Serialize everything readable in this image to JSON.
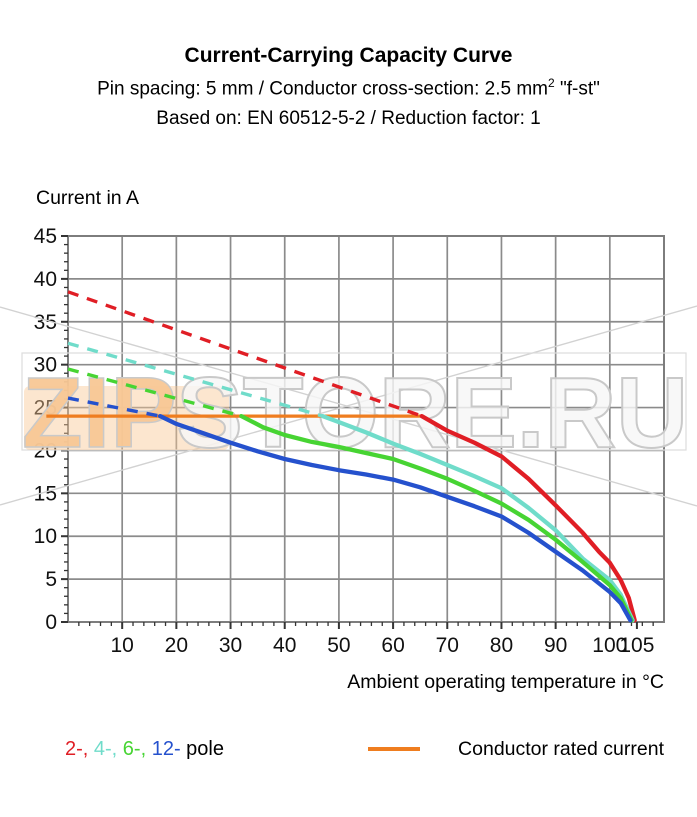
{
  "header": {
    "title": "Current-Carrying Capacity Curve",
    "subtitle1_pre": "Pin spacing: 5 mm / Conductor cross-section: 2.5 mm",
    "subtitle1_sup": "2",
    "subtitle1_post": " \"f-st\"",
    "subtitle2": "Based on: EN 60512-5-2 / Reduction factor: 1"
  },
  "watermark": {
    "text": "ZIPSTORE.RU",
    "zip_part": "ZIP",
    "rest_part": "STORE.RU",
    "peach_color": "#f8c795",
    "outline_color": "#c9c9c9"
  },
  "legend": {
    "pole_parts": [
      {
        "text": "2-,",
        "color": "#e01e25"
      },
      {
        "text": " 4-,",
        "color": "#70dcca"
      },
      {
        "text": " 6-,",
        "color": "#47d433"
      },
      {
        "text": " 12-",
        "color": "#2551cd"
      },
      {
        "text": " pole",
        "color": "#000000"
      }
    ],
    "rated_label": "Conductor rated current",
    "rated_color": "#ef7d1f"
  },
  "chart_data": {
    "type": "line",
    "title": "Current-Carrying Capacity Curve",
    "ylabel": "Current in A",
    "xlabel": "Ambient operating temperature in °C",
    "xlim": [
      0,
      110
    ],
    "ylim": [
      0,
      45
    ],
    "x_major_ticks": [
      10,
      20,
      30,
      40,
      50,
      60,
      70,
      80,
      90,
      100,
      105
    ],
    "x_gridlines": [
      10,
      20,
      30,
      40,
      50,
      60,
      70,
      80,
      90,
      100
    ],
    "y_major_ticks": [
      0,
      5,
      10,
      15,
      20,
      25,
      30,
      35,
      40,
      45
    ],
    "y_gridlines": [
      5,
      10,
      15,
      20,
      25,
      30,
      35,
      40
    ],
    "x_minor_step": 2,
    "y_minor_step": 1,
    "grid": true,
    "grid_color": "#8b8b8b",
    "rated_line": {
      "name": "Conductor rated current",
      "color": "#ef7d1f",
      "y": 24,
      "x_start": -4,
      "x_end": 65.3
    },
    "series": [
      {
        "name": "2-pole",
        "color": "#e01e25",
        "dashed": [
          [
            0,
            38.5
          ],
          [
            65.3,
            24
          ]
        ],
        "solid": [
          [
            65.3,
            24
          ],
          [
            70,
            22.3
          ],
          [
            75,
            20.9
          ],
          [
            80,
            19.3
          ],
          [
            85,
            16.7
          ],
          [
            90,
            13.6
          ],
          [
            95,
            10.4
          ],
          [
            98,
            8.2
          ],
          [
            100,
            6.9
          ],
          [
            102,
            4.9
          ],
          [
            103.5,
            2.8
          ],
          [
            104.6,
            0.2
          ]
        ]
      },
      {
        "name": "4-pole",
        "color": "#70dcca",
        "dashed": [
          [
            0,
            32.5
          ],
          [
            47,
            24
          ]
        ],
        "solid": [
          [
            47,
            24
          ],
          [
            50,
            23.3
          ],
          [
            55,
            22.1
          ],
          [
            60,
            20.8
          ],
          [
            65,
            19.6
          ],
          [
            70,
            18.3
          ],
          [
            75,
            17.0
          ],
          [
            80,
            15.6
          ],
          [
            85,
            13.3
          ],
          [
            90,
            10.7
          ],
          [
            95,
            7.4
          ],
          [
            100,
            4.9
          ],
          [
            102,
            3.2
          ],
          [
            104.2,
            0.2
          ]
        ]
      },
      {
        "name": "6-pole",
        "color": "#47d433",
        "dashed": [
          [
            0,
            29.5
          ],
          [
            32,
            24
          ]
        ],
        "solid": [
          [
            32,
            24
          ],
          [
            36,
            22.7
          ],
          [
            40,
            21.8
          ],
          [
            45,
            21.0
          ],
          [
            50,
            20.4
          ],
          [
            55,
            19.7
          ],
          [
            60,
            19.0
          ],
          [
            65,
            17.9
          ],
          [
            70,
            16.7
          ],
          [
            75,
            15.3
          ],
          [
            80,
            13.8
          ],
          [
            85,
            11.9
          ],
          [
            90,
            9.6
          ],
          [
            95,
            7.0
          ],
          [
            100,
            4.3
          ],
          [
            102,
            2.8
          ],
          [
            104,
            0.2
          ]
        ]
      },
      {
        "name": "12-pole",
        "color": "#2551cd",
        "dashed": [
          [
            0,
            26.1
          ],
          [
            17,
            24
          ]
        ],
        "solid": [
          [
            17,
            24
          ],
          [
            20,
            23.1
          ],
          [
            25,
            22.0
          ],
          [
            30,
            20.9
          ],
          [
            35,
            19.9
          ],
          [
            40,
            19.0
          ],
          [
            45,
            18.3
          ],
          [
            50,
            17.7
          ],
          [
            55,
            17.2
          ],
          [
            60,
            16.6
          ],
          [
            65,
            15.7
          ],
          [
            70,
            14.6
          ],
          [
            75,
            13.5
          ],
          [
            80,
            12.3
          ],
          [
            85,
            10.4
          ],
          [
            90,
            8.2
          ],
          [
            95,
            6.0
          ],
          [
            100,
            3.5
          ],
          [
            102,
            2.2
          ],
          [
            103.8,
            0.2
          ]
        ]
      }
    ]
  }
}
